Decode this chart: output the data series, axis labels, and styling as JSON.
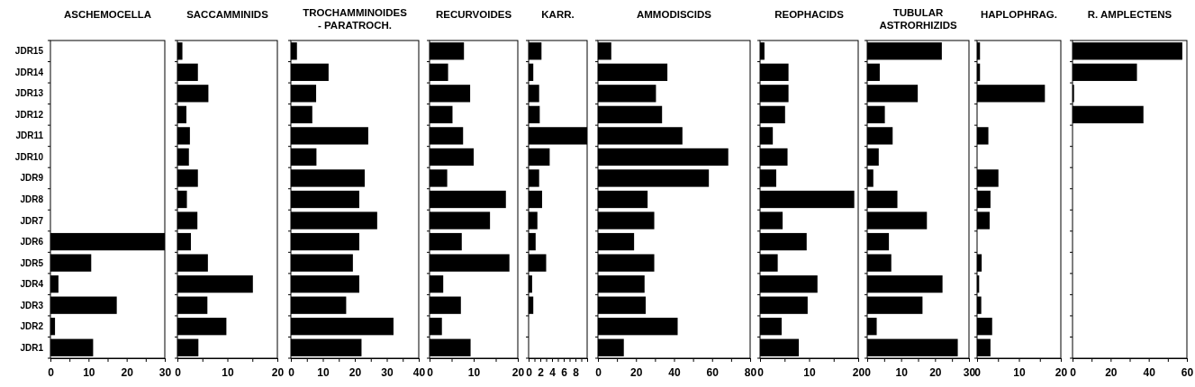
{
  "chart_data": [
    {
      "type": "bar",
      "orientation": "horizontal",
      "title": "ASCHEMOCELLA",
      "categories": [
        "JDR15",
        "JDR14",
        "JDR13",
        "JDR12",
        "JDR11",
        "JDR10",
        "JDR9",
        "JDR8",
        "JDR7",
        "JDR6",
        "JDR5",
        "JDR4",
        "JDR3",
        "JDR2",
        "JDR1"
      ],
      "values": [
        0,
        0,
        0,
        0,
        0,
        0,
        0,
        0,
        0,
        30,
        10.7,
        2.1,
        17.4,
        1.2,
        11.2
      ],
      "color": "#000000",
      "xlim": [
        0,
        30
      ],
      "xticks": [
        0,
        {
          "value": 5,
          "label": null
        },
        10,
        {
          "value": 15,
          "label": null
        },
        20,
        {
          "value": 25,
          "label": null
        },
        30
      ]
    },
    {
      "type": "bar",
      "orientation": "horizontal",
      "title": "SACCAMMINIDS",
      "categories": [
        null,
        null,
        null,
        null,
        null,
        null,
        null,
        null,
        null,
        null,
        null,
        null,
        null,
        null,
        null
      ],
      "values": [
        1,
        4.1,
        6.2,
        1.8,
        2.5,
        2.3,
        4.1,
        1.9,
        4,
        2.7,
        6.1,
        15.1,
        6,
        9.8,
        4.2
      ],
      "color": "#000000",
      "xlim": [
        0,
        20
      ],
      "xticks": [
        0,
        {
          "value": 5,
          "label": null
        },
        10,
        {
          "value": 15,
          "label": null
        },
        20
      ],
      "tick_labels": "x"
    },
    {
      "type": "bar",
      "orientation": "horizontal",
      "title": "TROCHAMMINOIDES\n- PARATROCH.",
      "categories": [
        null,
        null,
        null,
        null,
        null,
        null,
        null,
        null,
        null,
        null,
        null,
        null,
        null,
        null,
        null
      ],
      "values": [
        1.9,
        11.8,
        7.9,
        6.7,
        24.2,
        8,
        23.1,
        21.4,
        27,
        21.4,
        19.4,
        21.4,
        17.3,
        32.1,
        22.1
      ],
      "color": "#000000",
      "xlim": [
        0,
        40
      ],
      "xticks": [
        0,
        {
          "value": 5,
          "label": null
        },
        10,
        {
          "value": 15,
          "label": null
        },
        20,
        {
          "value": 25,
          "label": null
        },
        30,
        {
          "value": 35,
          "label": null
        },
        40
      ],
      "tick_labels": "x"
    },
    {
      "type": "bar",
      "orientation": "horizontal",
      "title": "RECURVOIDES",
      "categories": [
        null,
        null,
        null,
        null,
        null,
        null,
        null,
        null,
        null,
        null,
        null,
        null,
        null,
        null,
        null
      ],
      "values": [
        7.8,
        4.2,
        9.2,
        5.2,
        7.6,
        10,
        4,
        17.3,
        13.7,
        7.3,
        18.1,
        3.1,
        7.1,
        2.8,
        9.3
      ],
      "color": "#000000",
      "xlim": [
        0,
        20
      ],
      "xticks": [
        0,
        {
          "value": 5,
          "label": null
        },
        10,
        {
          "value": 15,
          "label": null
        },
        20
      ],
      "tick_labels": "x"
    },
    {
      "type": "bar",
      "orientation": "horizontal",
      "title": "KARR.",
      "categories": [
        null,
        null,
        null,
        null,
        null,
        null,
        null,
        null,
        null,
        null,
        null,
        null,
        null,
        null,
        null
      ],
      "values": [
        2.2,
        0.8,
        1.8,
        1.9,
        10,
        3.6,
        1.8,
        2.3,
        1.5,
        1.2,
        3,
        0.6,
        0.8,
        0,
        0
      ],
      "color": "#000000",
      "xlim": [
        0,
        10
      ],
      "xticks": [
        0,
        {
          "value": 1,
          "label": null
        },
        2,
        {
          "value": 3,
          "label": null
        },
        4,
        {
          "value": 5,
          "label": null
        },
        6,
        {
          "value": 7,
          "label": null
        },
        8,
        {
          "value": 9,
          "label": null
        },
        {
          "value": 10,
          "label": null
        }
      ],
      "tick_labels": "x"
    },
    {
      "type": "bar",
      "orientation": "horizontal",
      "title": "AMMODISCIDS",
      "categories": [
        null,
        null,
        null,
        null,
        null,
        null,
        null,
        null,
        null,
        null,
        null,
        null,
        null,
        null,
        null
      ],
      "values": [
        7,
        36.5,
        30.5,
        33.7,
        44.4,
        68.5,
        58.3,
        26.1,
        29.6,
        19,
        29.6,
        24.5,
        25.1,
        41.9,
        13.6
      ],
      "color": "#000000",
      "xlim": [
        0,
        80
      ],
      "xticks": [
        0,
        {
          "value": 10,
          "label": null
        },
        20,
        {
          "value": 30,
          "label": null
        },
        40,
        {
          "value": 50,
          "label": null
        },
        60,
        {
          "value": 70,
          "label": null
        },
        80
      ],
      "tick_labels": "x"
    },
    {
      "type": "bar",
      "orientation": "horizontal",
      "title": "REOPHACIDS",
      "categories": [
        null,
        null,
        null,
        null,
        null,
        null,
        null,
        null,
        null,
        null,
        null,
        null,
        null,
        null,
        null
      ],
      "values": [
        0.9,
        5.8,
        5.8,
        5.1,
        2.6,
        5.6,
        3.3,
        19.2,
        4.6,
        9.5,
        3.6,
        11.7,
        9.7,
        4.4,
        7.9
      ],
      "color": "#000000",
      "xlim": [
        0,
        20
      ],
      "xticks": [
        0,
        {
          "value": 5,
          "label": null
        },
        10,
        {
          "value": 15,
          "label": null
        },
        20
      ],
      "tick_labels": "x"
    },
    {
      "type": "bar",
      "orientation": "horizontal",
      "title": "TUBULAR\nASTRORHIZIDS",
      "categories": [
        null,
        null,
        null,
        null,
        null,
        null,
        null,
        null,
        null,
        null,
        null,
        null,
        null,
        null,
        null
      ],
      "values": [
        22,
        3.7,
        14.9,
        5.2,
        7.5,
        3.4,
        1.8,
        8.9,
        17.6,
        6.4,
        7.1,
        22.2,
        16.3,
        2.8,
        26.7
      ],
      "color": "#000000",
      "xlim": [
        0,
        30
      ],
      "xticks": [
        0,
        {
          "value": 5,
          "label": null
        },
        10,
        {
          "value": 15,
          "label": null
        },
        20,
        {
          "value": 25,
          "label": null
        },
        30
      ],
      "tick_labels": "x"
    },
    {
      "type": "bar",
      "orientation": "horizontal",
      "title": "HAPLOPHRAG.",
      "categories": [
        null,
        null,
        null,
        null,
        null,
        null,
        null,
        null,
        null,
        null,
        null,
        null,
        null,
        null,
        null
      ],
      "values": [
        0.7,
        0.7,
        16.2,
        0,
        2.7,
        0,
        5.1,
        3.2,
        3,
        0,
        1.1,
        0.5,
        1,
        3.6,
        3.2
      ],
      "color": "#000000",
      "xlim": [
        0,
        20
      ],
      "xticks": [
        0,
        {
          "value": 5,
          "label": null
        },
        10,
        {
          "value": 15,
          "label": null
        },
        20
      ],
      "tick_labels": "x"
    },
    {
      "type": "bar",
      "orientation": "horizontal",
      "title": "R. AMPLECTENS",
      "categories": [
        null,
        null,
        null,
        null,
        null,
        null,
        null,
        null,
        null,
        null,
        null,
        null,
        null,
        null,
        null
      ],
      "values": [
        57.6,
        33.8,
        0.8,
        37.2,
        0,
        0,
        0,
        0,
        0,
        0,
        0,
        0,
        0,
        0,
        0
      ],
      "color": "#000000",
      "xlim": [
        0,
        60
      ],
      "xticks": [
        0,
        {
          "value": 10,
          "label": null
        },
        20,
        {
          "value": 30,
          "label": null
        },
        40,
        {
          "value": 50,
          "label": null
        },
        60
      ],
      "tick_labels": "x"
    }
  ]
}
